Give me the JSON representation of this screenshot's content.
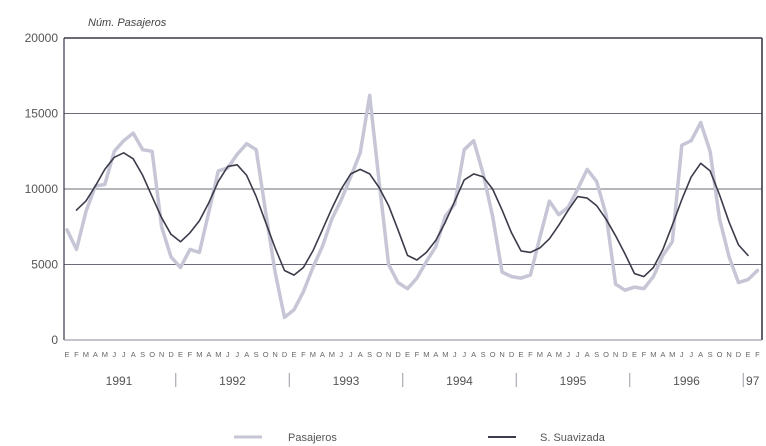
{
  "chart_data": {
    "type": "line",
    "ylabel": "Núm. Pasajeros",
    "ylim": [
      0,
      20000
    ],
    "yticks": [
      "0",
      "5000",
      "10000",
      "15000",
      "20000"
    ],
    "grid": true,
    "month_letters": [
      "E",
      "F",
      "M",
      "A",
      "M",
      "J",
      "J",
      "A",
      "S",
      "O",
      "N",
      "D"
    ],
    "years": [
      "1991",
      "1992",
      "1993",
      "1994",
      "1995",
      "1996",
      "97"
    ],
    "x_start": "1991-01",
    "series": [
      {
        "name": "Pasajeros",
        "color": "#c6c6d6",
        "values": [
          7300,
          6000,
          8500,
          10200,
          10300,
          12500,
          13200,
          13700,
          12600,
          12500,
          7500,
          5500,
          4800,
          6000,
          5800,
          8500,
          11200,
          11400,
          12300,
          13000,
          12600,
          8500,
          4500,
          1500,
          2000,
          3200,
          4800,
          6200,
          8000,
          9300,
          10800,
          12400,
          16200,
          10500,
          5000,
          3800,
          3400,
          4100,
          5200,
          6200,
          8200,
          9000,
          12600,
          13200,
          11000,
          8200,
          4500,
          4200,
          4100,
          4300,
          6800,
          9200,
          8300,
          8800,
          10000,
          11300,
          10500,
          8300,
          3700,
          3300,
          3500,
          3400,
          4200,
          5600,
          6500,
          12900,
          13200,
          14400,
          12500,
          8000,
          5500,
          3800,
          4000,
          4600
        ]
      },
      {
        "name": "S. Suavizada",
        "color": "#3b3b4a",
        "values": [
          null,
          8600,
          9200,
          10200,
          11300,
          12100,
          12400,
          12000,
          10900,
          9500,
          8100,
          7000,
          6500,
          7100,
          7900,
          9100,
          10500,
          11500,
          11600,
          10900,
          9500,
          7800,
          6100,
          4600,
          4300,
          4800,
          5900,
          7300,
          8700,
          10000,
          11000,
          11300,
          11000,
          10100,
          8900,
          7300,
          5600,
          5300,
          5800,
          6600,
          7800,
          9200,
          10600,
          11000,
          10800,
          10000,
          8600,
          7100,
          5900,
          5800,
          6100,
          6700,
          7600,
          8600,
          9500,
          9400,
          8900,
          8000,
          6900,
          5700,
          4400,
          4200,
          4800,
          6000,
          7600,
          9300,
          10800,
          11700,
          11200,
          9600,
          7800,
          6300,
          5600,
          null
        ]
      }
    ]
  }
}
